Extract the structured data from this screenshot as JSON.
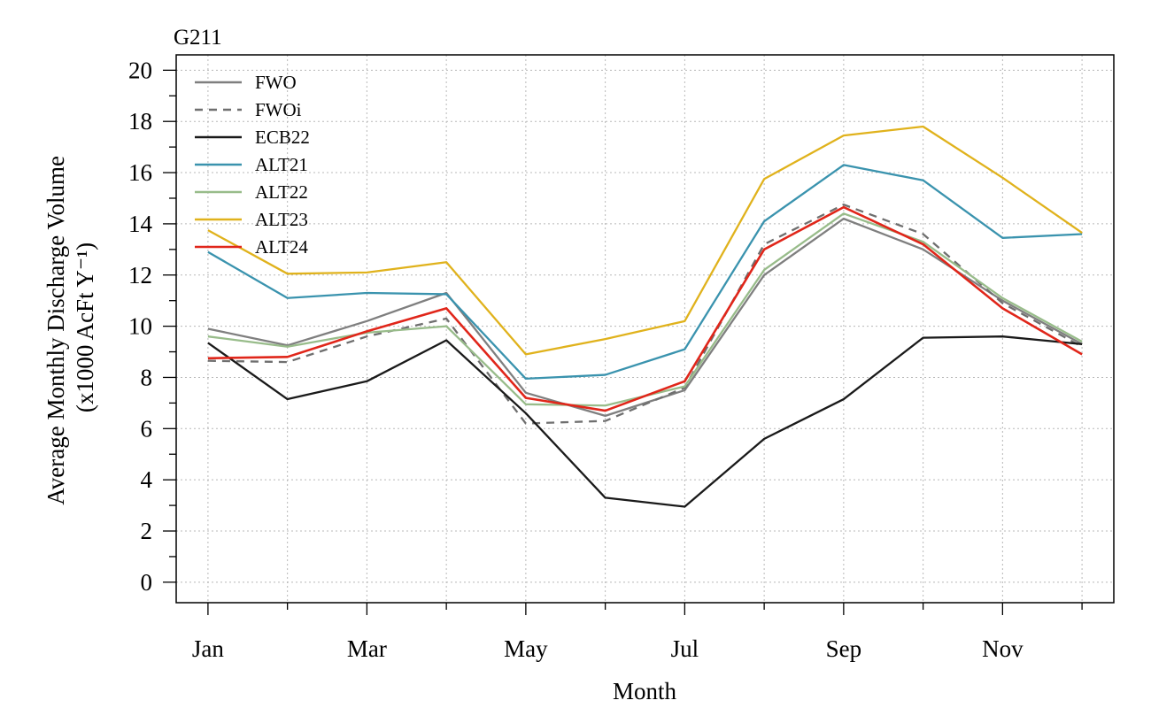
{
  "chart_data": {
    "type": "line",
    "title": "G211",
    "xlabel": "Month",
    "ylabel_line1": "Average Monthly Discharge Volume",
    "ylabel_line2": "(x1000 AcFt Y⁻¹)",
    "x": [
      1,
      2,
      3,
      4,
      5,
      6,
      7,
      8,
      9,
      10,
      11,
      12
    ],
    "x_tick_labels": [
      {
        "x": 1,
        "label": "Jan"
      },
      {
        "x": 3,
        "label": "Mar"
      },
      {
        "x": 5,
        "label": "May"
      },
      {
        "x": 7,
        "label": "Jul"
      },
      {
        "x": 9,
        "label": "Sep"
      },
      {
        "x": 11,
        "label": "Nov"
      }
    ],
    "xlim": [
      0.6,
      12.4
    ],
    "ylim": [
      -0.8,
      20.6
    ],
    "y_ticks": [
      0,
      2,
      4,
      6,
      8,
      10,
      12,
      14,
      16,
      18,
      20
    ],
    "grid": true,
    "legend_position": "top-left",
    "series": [
      {
        "name": "FWO",
        "color": "#7f7f7f",
        "dash": "solid",
        "values": [
          9.9,
          9.25,
          10.2,
          11.3,
          7.4,
          6.5,
          7.5,
          12.0,
          14.2,
          13.0,
          11.0,
          9.3
        ]
      },
      {
        "name": "FWOi",
        "color": "#6f6f6f",
        "dash": "dashed",
        "values": [
          8.65,
          8.6,
          9.6,
          10.3,
          6.2,
          6.3,
          7.6,
          13.2,
          14.75,
          13.6,
          10.9,
          9.2
        ]
      },
      {
        "name": "ECB22",
        "color": "#1a1a1a",
        "dash": "solid",
        "values": [
          9.35,
          7.15,
          7.85,
          9.45,
          6.6,
          3.3,
          2.95,
          5.6,
          7.15,
          9.55,
          9.6,
          9.3
        ]
      },
      {
        "name": "ALT21",
        "color": "#3a93ae",
        "dash": "solid",
        "values": [
          12.9,
          11.1,
          11.3,
          11.25,
          7.95,
          8.1,
          9.1,
          14.1,
          16.3,
          15.7,
          13.45,
          13.6
        ]
      },
      {
        "name": "ALT22",
        "color": "#98bc8a",
        "dash": "solid",
        "values": [
          9.6,
          9.2,
          9.75,
          10.0,
          6.95,
          6.9,
          7.65,
          12.2,
          14.4,
          13.3,
          11.1,
          9.4
        ]
      },
      {
        "name": "ALT23",
        "color": "#e0b21c",
        "dash": "solid",
        "values": [
          13.75,
          12.05,
          12.1,
          12.5,
          8.9,
          9.5,
          10.2,
          15.75,
          17.45,
          17.8,
          15.8,
          13.65
        ]
      },
      {
        "name": "ALT24",
        "color": "#e0261a",
        "dash": "solid",
        "values": [
          8.75,
          8.8,
          9.8,
          10.7,
          7.2,
          6.7,
          7.85,
          13.0,
          14.65,
          13.2,
          10.7,
          8.9
        ]
      }
    ]
  }
}
